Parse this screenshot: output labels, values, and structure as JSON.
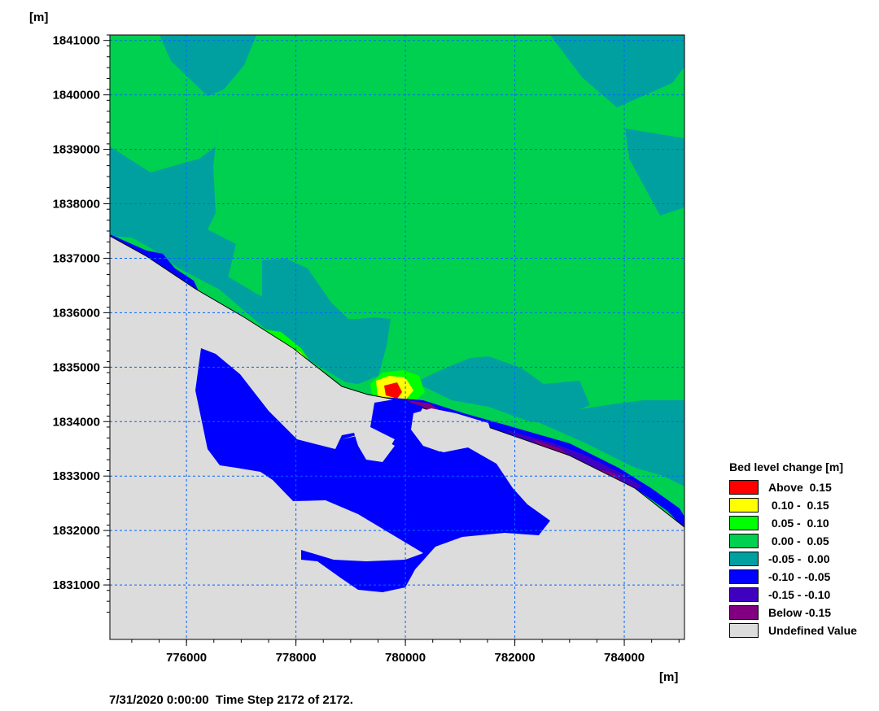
{
  "chart_data": {
    "type": "heatmap",
    "title": "",
    "xlabel": "[m]",
    "ylabel": "[m]",
    "xlim": [
      774600,
      785100
    ],
    "ylim": [
      1830000,
      1841100
    ],
    "x_ticks": [
      "776000",
      "778000",
      "780000",
      "782000",
      "784000"
    ],
    "y_ticks": [
      "1831000",
      "1832000",
      "1833000",
      "1834000",
      "1835000",
      "1836000",
      "1837000",
      "1838000",
      "1839000",
      "1840000",
      "1841000"
    ],
    "grid": true,
    "legend_position": "right",
    "legend": {
      "title": "Bed level change [m]",
      "entries": [
        {
          "label": "Above  0.15",
          "color": "#ff0000"
        },
        {
          "label": " 0.10 -  0.15",
          "color": "#ffff00"
        },
        {
          "label": " 0.05 -  0.10",
          "color": "#00ff00"
        },
        {
          "label": " 0.00 -  0.05",
          "color": "#00d050"
        },
        {
          "label": "-0.05 -  0.00",
          "color": "#00a0a0"
        },
        {
          "label": "-0.10 - -0.05",
          "color": "#0000ff"
        },
        {
          "label": "-0.15 - -0.10",
          "color": "#4000c0"
        },
        {
          "label": "Below -0.15",
          "color": "#800080"
        },
        {
          "label": "Undefined Value",
          "color": "#dcdcdc"
        }
      ]
    }
  },
  "status": "7/31/2020 0:00:00  Time Step 2172 of 2172."
}
